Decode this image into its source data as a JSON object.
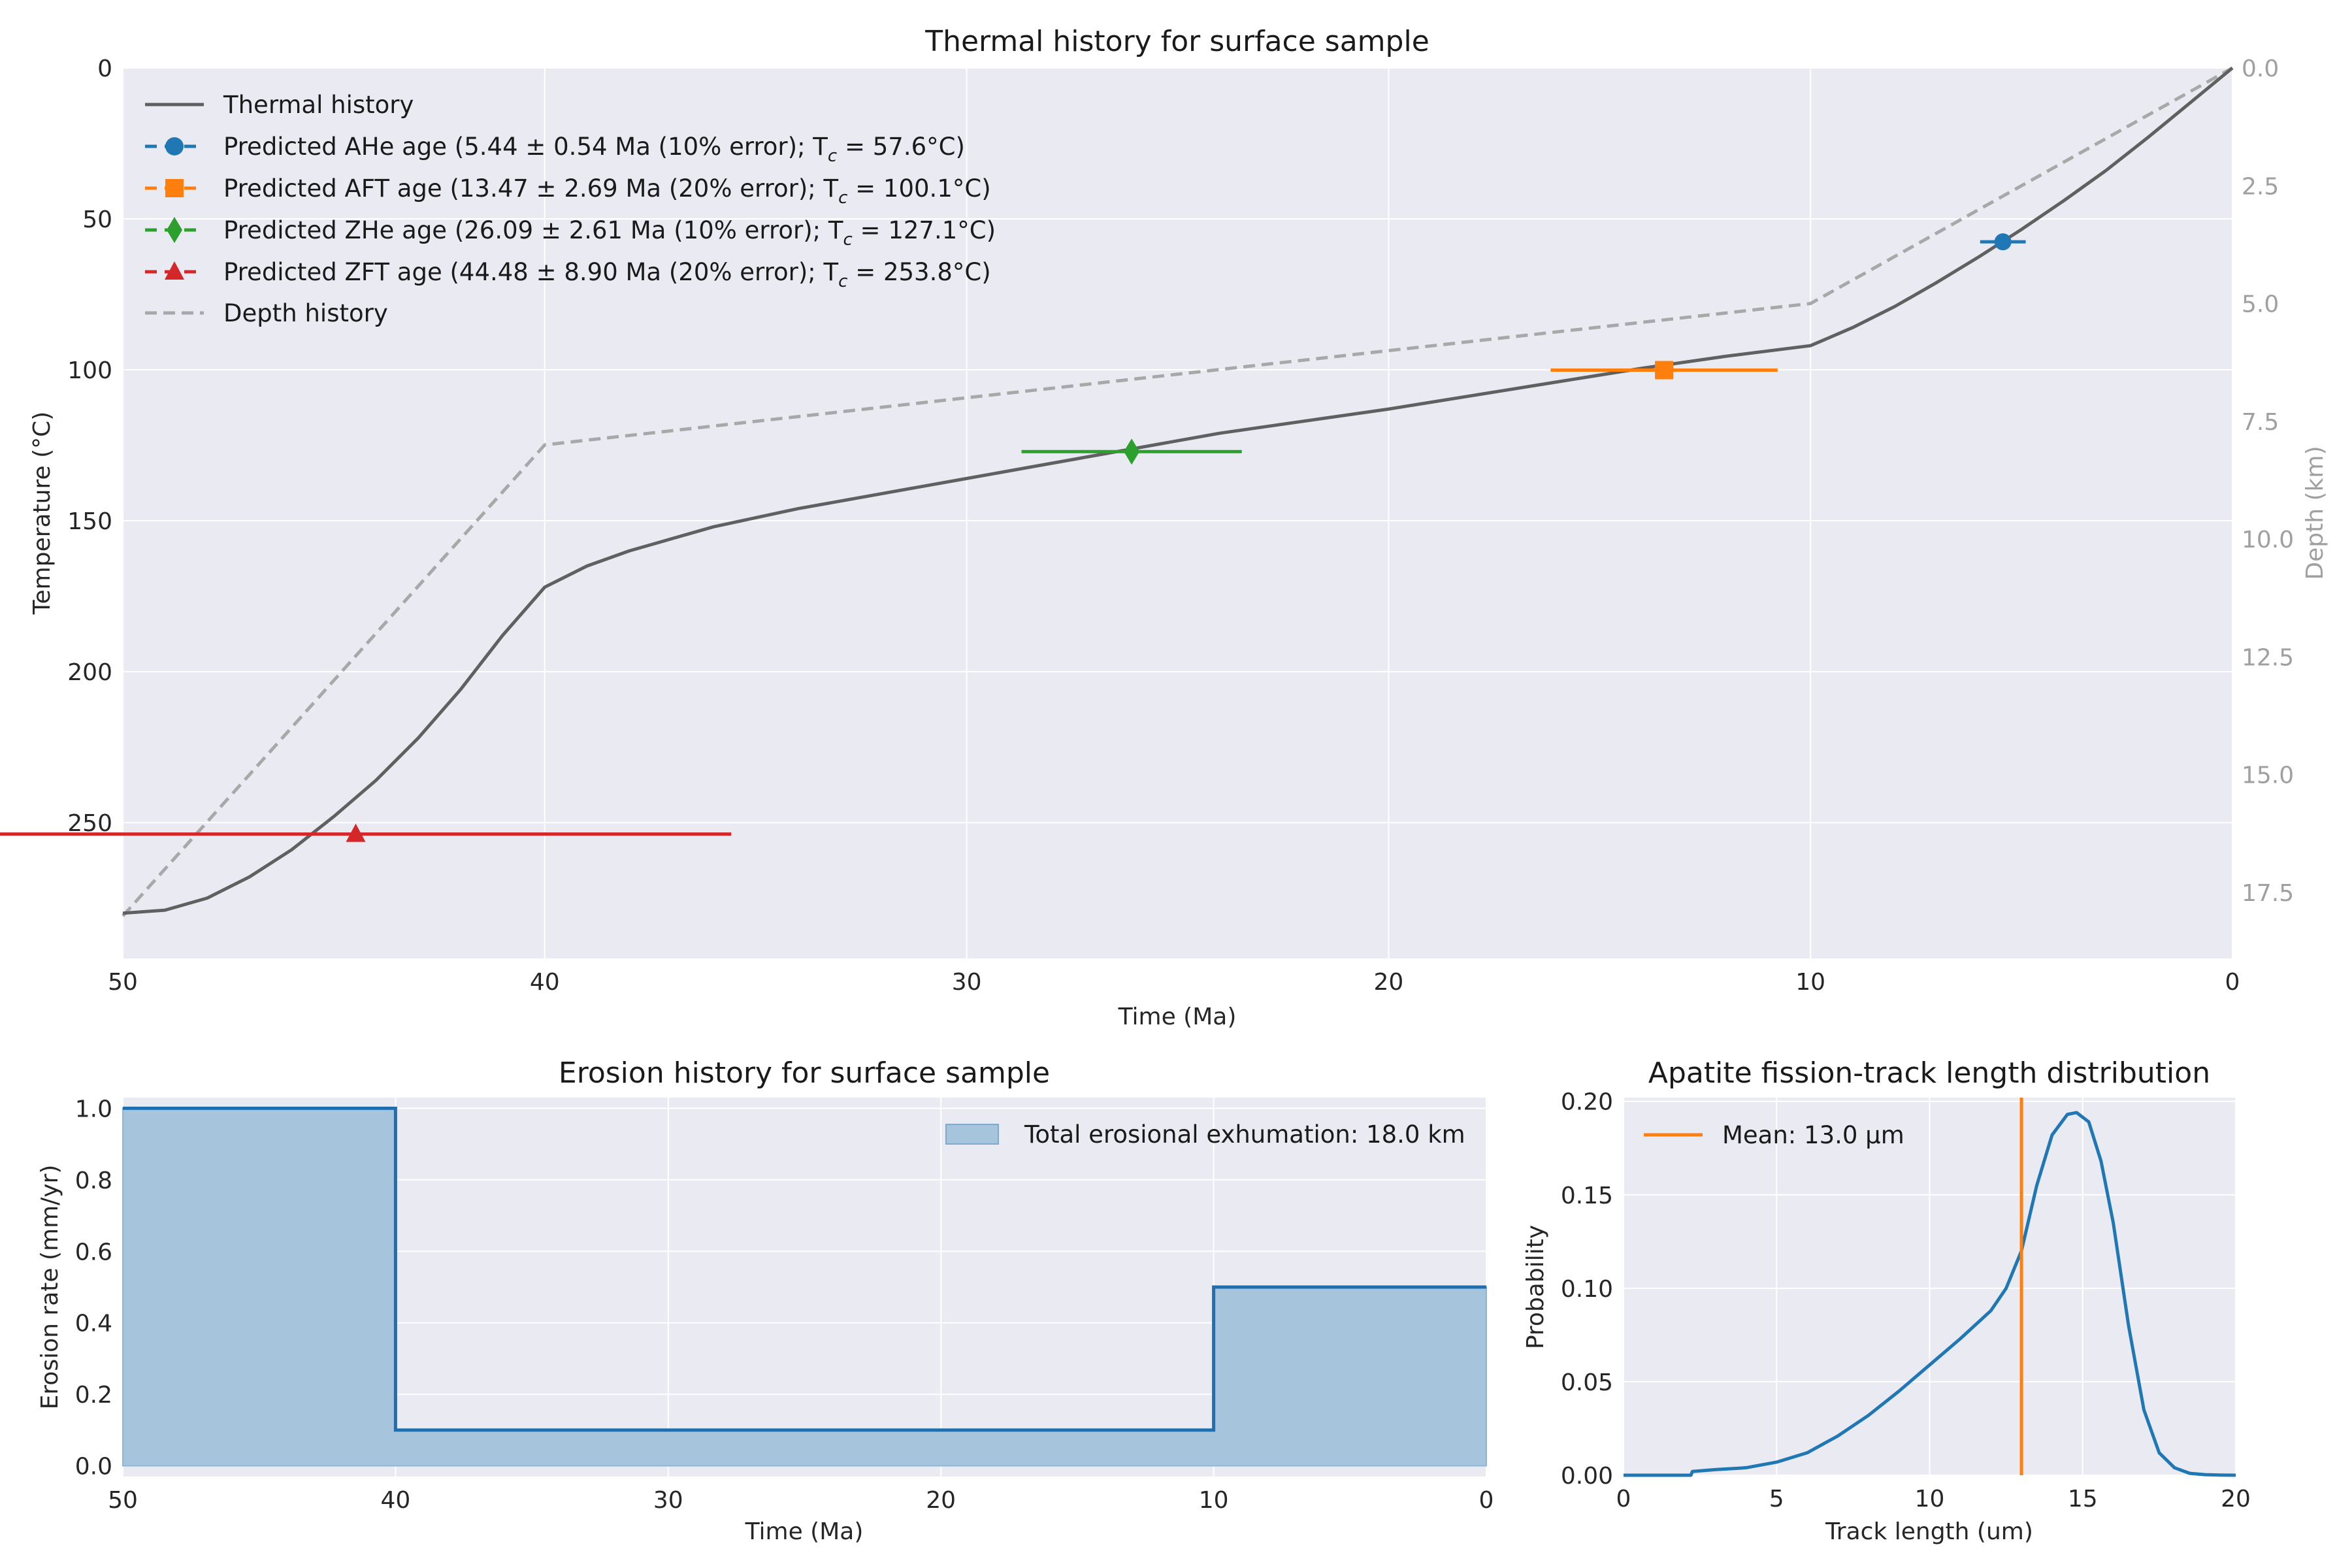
{
  "chart_data": [
    {
      "type": "line",
      "title": "Thermal history for surface sample",
      "xlabel": "Time (Ma)",
      "ylabel": "Temperature (°C)",
      "y2label": "Depth (km)",
      "xlim": [
        50,
        0
      ],
      "ylim": [
        295,
        0
      ],
      "y2lim": [
        18.9,
        0
      ],
      "xticks": [
        "50",
        "40",
        "30",
        "20",
        "10",
        "0"
      ],
      "yticks": [
        "0",
        "50",
        "100",
        "150",
        "200",
        "250"
      ],
      "y2ticks": [
        "0.0",
        "2.5",
        "5.0",
        "7.5",
        "10.0",
        "12.5",
        "15.0",
        "17.5"
      ],
      "grid": true,
      "legend_position": "top-left",
      "series": [
        {
          "name": "Thermal history",
          "color": "#606060",
          "x": [
            50,
            49,
            48,
            47,
            46,
            45,
            44,
            43,
            42,
            41,
            40,
            39,
            38,
            37,
            36,
            35,
            34,
            32,
            30,
            28,
            26,
            24,
            22,
            20,
            18,
            16,
            14,
            12,
            10,
            9,
            8,
            7,
            6,
            5,
            4,
            3,
            2,
            1,
            0
          ],
          "y": [
            280,
            279,
            275,
            268,
            259,
            248,
            236,
            222,
            206,
            188,
            172,
            165,
            160,
            156,
            152,
            149,
            146,
            141,
            136,
            131,
            126,
            121,
            117,
            113,
            108.5,
            104,
            99.5,
            95.5,
            92,
            86,
            79,
            71,
            62.5,
            53.5,
            44,
            34,
            23,
            11.5,
            0
          ]
        },
        {
          "name": "Depth history",
          "color": "#a8a8a8",
          "x": [
            50,
            40,
            10,
            0
          ],
          "y": [
            18.0,
            8.0,
            5.0,
            0.0
          ]
        }
      ],
      "points": [
        {
          "name": "Predicted AHe age (5.44 ± 0.54 Ma (10% error); T",
          "suffix": " = 57.6°C)",
          "age": 5.44,
          "err": 0.54,
          "tc": 57.6,
          "color": "#1f77b4",
          "marker": "circle"
        },
        {
          "name": "Predicted AFT age (13.47 ± 2.69 Ma (20% error); T",
          "suffix": " = 100.1°C)",
          "age": 13.47,
          "err": 2.69,
          "tc": 100.1,
          "color": "#ff7f0e",
          "marker": "square"
        },
        {
          "name": "Predicted ZHe age (26.09 ± 2.61 Ma (10% error); T",
          "suffix": " = 127.1°C)",
          "age": 26.09,
          "err": 2.61,
          "tc": 127.1,
          "color": "#2ca02c",
          "marker": "diamond"
        },
        {
          "name": "Predicted ZFT age (44.48 ± 8.90 Ma (20% error); T",
          "suffix": " = 253.8°C)",
          "age": 44.48,
          "err": 8.9,
          "tc": 253.8,
          "color": "#d62728",
          "marker": "triangle"
        }
      ],
      "subscript": "c"
    },
    {
      "type": "area",
      "title": "Erosion history for surface sample",
      "xlabel": "Time (Ma)",
      "ylabel": "Erosion rate (mm/yr)",
      "xlim": [
        50,
        0
      ],
      "ylim": [
        -0.03,
        1.03
      ],
      "xticks": [
        "50",
        "40",
        "30",
        "20",
        "10",
        "0"
      ],
      "yticks": [
        "0.0",
        "0.2",
        "0.4",
        "0.6",
        "0.8",
        "1.0"
      ],
      "grid": true,
      "legend_position": "top-right",
      "series": [
        {
          "name": "Total erosional exhumation: 18.0 km",
          "color": "#1f6fb0",
          "fill": "#a6c4dc",
          "x": [
            50,
            40,
            40,
            10,
            10,
            0
          ],
          "y": [
            1.0,
            1.0,
            0.1,
            0.1,
            0.5,
            0.5
          ]
        }
      ]
    },
    {
      "type": "line",
      "title": "Apatite fission-track length distribution",
      "xlabel": "Track length (um)",
      "ylabel": "Probability",
      "xlim": [
        0,
        20
      ],
      "ylim": [
        0,
        0.202
      ],
      "xticks": [
        "0",
        "5",
        "10",
        "15",
        "20"
      ],
      "yticks": [
        "0.00",
        "0.05",
        "0.10",
        "0.15",
        "0.20"
      ],
      "grid": true,
      "legend_position": "top-left",
      "series": [
        {
          "name": "",
          "color": "#1f77b4",
          "x": [
            0,
            2.2,
            2.25,
            3,
            4,
            5,
            6,
            7,
            8,
            9,
            10,
            11,
            12,
            12.5,
            13,
            13.5,
            14,
            14.5,
            14.8,
            15.2,
            15.6,
            16,
            16.5,
            17,
            17.5,
            18,
            18.5,
            19,
            19.5,
            20
          ],
          "y": [
            0,
            0,
            0.002,
            0.003,
            0.004,
            0.007,
            0.012,
            0.021,
            0.032,
            0.045,
            0.059,
            0.073,
            0.088,
            0.1,
            0.12,
            0.155,
            0.182,
            0.193,
            0.194,
            0.189,
            0.168,
            0.135,
            0.08,
            0.035,
            0.012,
            0.004,
            0.001,
            0.0003,
            0.0001,
            0
          ]
        }
      ],
      "vline": {
        "name": "Mean: 13.0 μm",
        "x": 13.0,
        "color": "#ff7f0e"
      }
    }
  ]
}
